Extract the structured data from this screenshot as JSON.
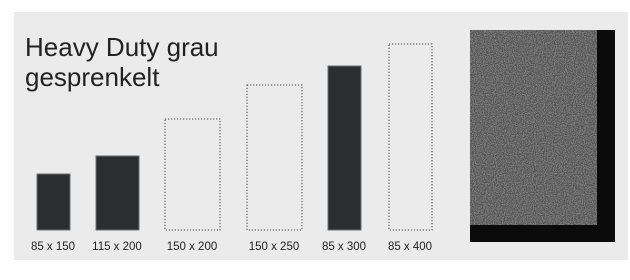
{
  "product": {
    "title_lines": [
      "Heavy Duty grau",
      "gesprenkelt"
    ],
    "sizes": [
      "85 x 150",
      "115 x 200",
      "150 x 200",
      "150 x 250",
      "85 x 300",
      "85 x 400"
    ]
  }
}
